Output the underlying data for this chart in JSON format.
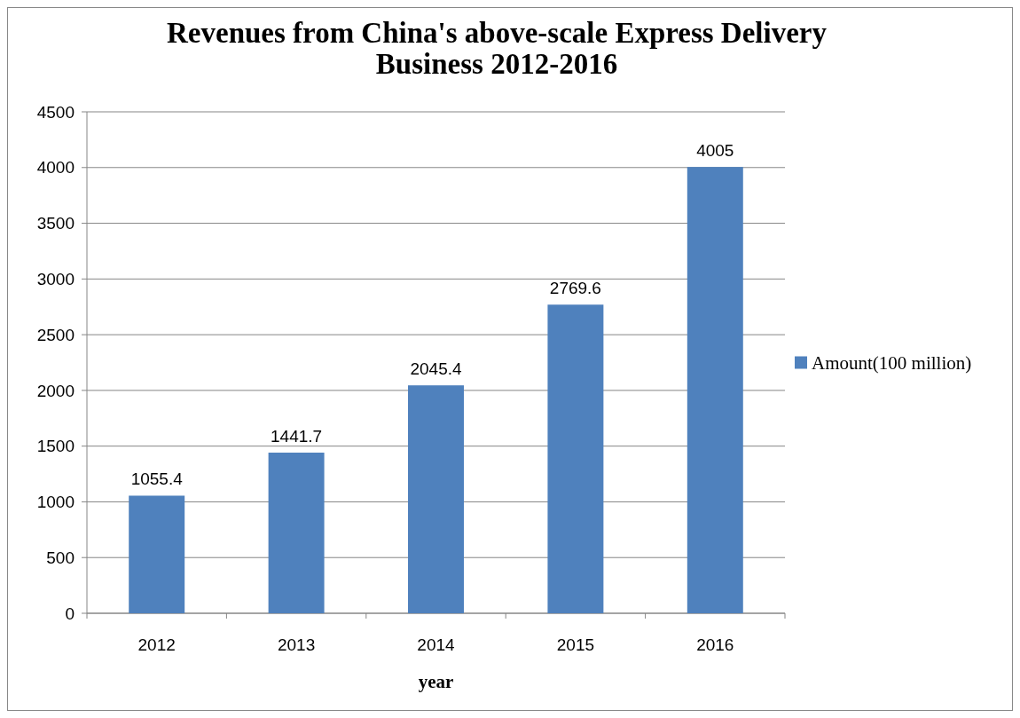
{
  "chart_data": {
    "type": "bar",
    "title": "Revenues from China's above-scale Express Delivery\nBusiness  2012-2016",
    "xlabel": "year",
    "categories": [
      "2012",
      "2013",
      "2014",
      "2015",
      "2016"
    ],
    "series": [
      {
        "name": "Amount(100 million)",
        "color": "#4f81bd",
        "values": [
          1055.4,
          1441.7,
          2045.4,
          2769.6,
          4005
        ]
      }
    ],
    "ylim": [
      0,
      4500
    ],
    "yticks": [
      0,
      500,
      1000,
      1500,
      2000,
      2500,
      3000,
      3500,
      4000,
      4500
    ],
    "grid": "y",
    "legend": "right",
    "data_labels": true
  }
}
